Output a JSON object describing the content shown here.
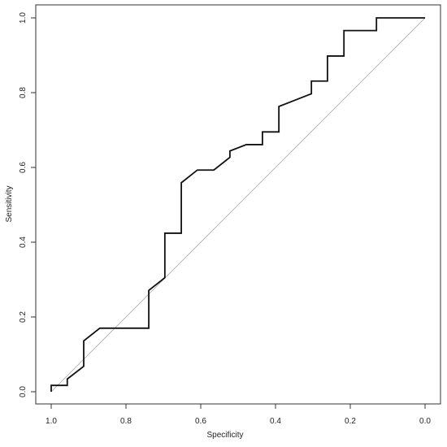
{
  "chart_data": {
    "type": "line",
    "xlabel": "Specificity",
    "ylabel": "Sensitivity",
    "xlim": [
      1.0,
      0.0
    ],
    "ylim": [
      0.0,
      1.0
    ],
    "x_reversed": true,
    "grid": false,
    "legend": "none",
    "xticks": [
      1.0,
      0.8,
      0.6,
      0.4,
      0.2,
      0.0
    ],
    "xtick_labels": [
      "1.0",
      "0.8",
      "0.6",
      "0.4",
      "0.2",
      "0.0"
    ],
    "yticks": [
      0.0,
      0.2,
      0.4,
      0.6,
      0.8,
      1.0
    ],
    "ytick_labels": [
      "0.0",
      "0.2",
      "0.4",
      "0.6",
      "0.8",
      "1.0"
    ],
    "reference_line": {
      "points": [
        [
          1.0,
          0.0
        ],
        [
          0.0,
          1.0
        ]
      ],
      "color": "#aaaaaa"
    },
    "series": [
      {
        "color": "#111111",
        "points": [
          [
            1.0,
            0.0
          ],
          [
            1.0,
            0.017
          ],
          [
            0.957,
            0.017
          ],
          [
            0.957,
            0.034
          ],
          [
            0.913,
            0.068
          ],
          [
            0.913,
            0.136
          ],
          [
            0.87,
            0.17
          ],
          [
            0.739,
            0.17
          ],
          [
            0.739,
            0.271
          ],
          [
            0.696,
            0.305
          ],
          [
            0.696,
            0.424
          ],
          [
            0.652,
            0.424
          ],
          [
            0.652,
            0.559
          ],
          [
            0.609,
            0.593
          ],
          [
            0.565,
            0.593
          ],
          [
            0.522,
            0.627
          ],
          [
            0.522,
            0.644
          ],
          [
            0.478,
            0.661
          ],
          [
            0.435,
            0.661
          ],
          [
            0.435,
            0.695
          ],
          [
            0.391,
            0.695
          ],
          [
            0.391,
            0.763
          ],
          [
            0.304,
            0.797
          ],
          [
            0.304,
            0.831
          ],
          [
            0.261,
            0.831
          ],
          [
            0.261,
            0.898
          ],
          [
            0.217,
            0.898
          ],
          [
            0.217,
            0.966
          ],
          [
            0.13,
            0.966
          ],
          [
            0.13,
            1.0
          ],
          [
            0.0,
            1.0
          ]
        ]
      }
    ]
  }
}
